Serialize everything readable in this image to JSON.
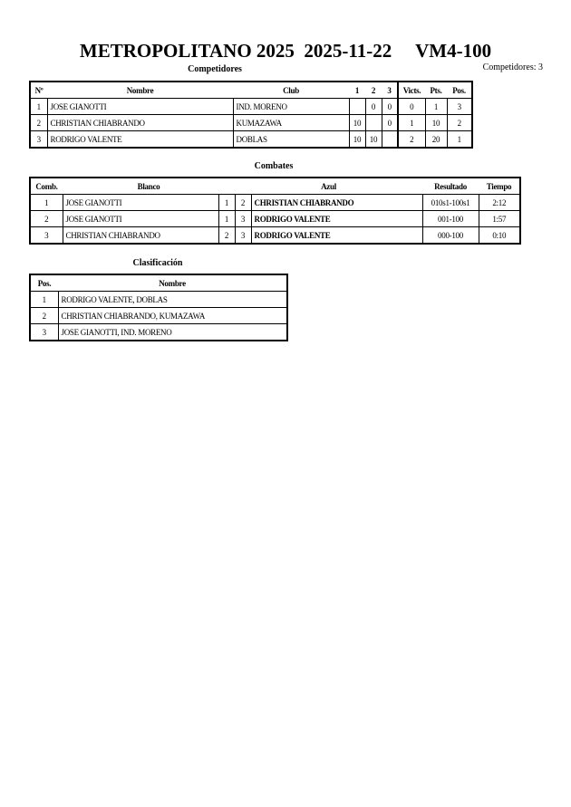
{
  "title": "METROPOLITANO 2025  2025-11-22     VM4-100",
  "competidores_count": "Competidores: 3",
  "competidores": {
    "heading": "Competidores",
    "headers": [
      "Nº",
      "Nombre",
      "Club",
      "1",
      "2",
      "3",
      "Victs.",
      "Pts.",
      "Pos."
    ],
    "rows": [
      [
        "1",
        "JOSE GIANOTTI",
        "IND. MORENO",
        "",
        "0",
        "0",
        "0",
        "1",
        "3"
      ],
      [
        "2",
        "CHRISTIAN CHIABRANDO",
        "KUMAZAWA",
        "10",
        "",
        "0",
        "1",
        "10",
        "2"
      ],
      [
        "3",
        "RODRIGO VALENTE",
        "DOBLAS",
        "10",
        "10",
        "",
        "2",
        "20",
        "1"
      ]
    ]
  },
  "combates": {
    "heading": "Combates",
    "headers": [
      "Comb.",
      "Blanco",
      "Azul",
      "Resultado",
      "Tiempo"
    ],
    "rows": [
      [
        "1",
        "JOSE GIANOTTI",
        "1",
        "2",
        "CHRISTIAN CHIABRANDO",
        "010s1-100s1",
        "2:12"
      ],
      [
        "2",
        "JOSE GIANOTTI",
        "1",
        "3",
        "RODRIGO VALENTE",
        "001-100",
        "1:57"
      ],
      [
        "3",
        "CHRISTIAN CHIABRANDO",
        "2",
        "3",
        "RODRIGO VALENTE",
        "000-100",
        "0:10"
      ]
    ]
  },
  "clasificacion": {
    "heading": "Clasificación",
    "headers": [
      "Pos.",
      "Nombre"
    ],
    "rows": [
      [
        "1",
        "RODRIGO VALENTE, DOBLAS"
      ],
      [
        "2",
        "CHRISTIAN CHIABRANDO, KUMAZAWA"
      ],
      [
        "3",
        "JOSE GIANOTTI, IND. MORENO"
      ]
    ]
  }
}
